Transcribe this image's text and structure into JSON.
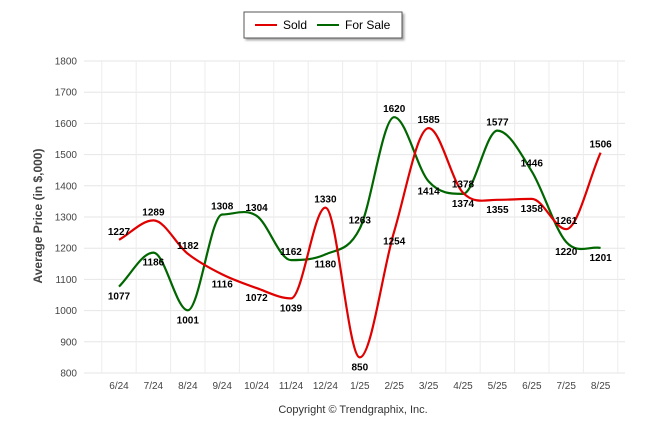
{
  "chart_data": {
    "type": "line",
    "categories": [
      "6/24",
      "7/24",
      "8/24",
      "9/24",
      "10/24",
      "11/24",
      "12/24",
      "1/25",
      "2/25",
      "3/25",
      "4/25",
      "5/25",
      "6/25",
      "7/25",
      "8/25"
    ],
    "series": [
      {
        "name": "Sold",
        "color": "#e00000",
        "values": [
          1227,
          1289,
          1182,
          1116,
          1072,
          1039,
          1330,
          850,
          1254,
          1585,
          1378,
          1355,
          1358,
          1261,
          1506
        ]
      },
      {
        "name": "For Sale",
        "color": "#006600",
        "values": [
          1077,
          1186,
          1001,
          1308,
          1304,
          1162,
          1180,
          1263,
          1620,
          1414,
          1374,
          1577,
          1446,
          1220,
          1201
        ]
      }
    ],
    "title": "",
    "xlabel": "",
    "ylabel": "Average Price (in $,000)",
    "ylim": [
      800,
      1800
    ],
    "yticks": [
      800,
      900,
      1000,
      1100,
      1200,
      1300,
      1400,
      1500,
      1600,
      1700,
      1800
    ],
    "grid": true,
    "legend": "top-center",
    "footer": "Copyright © Trendgraphix, Inc."
  }
}
